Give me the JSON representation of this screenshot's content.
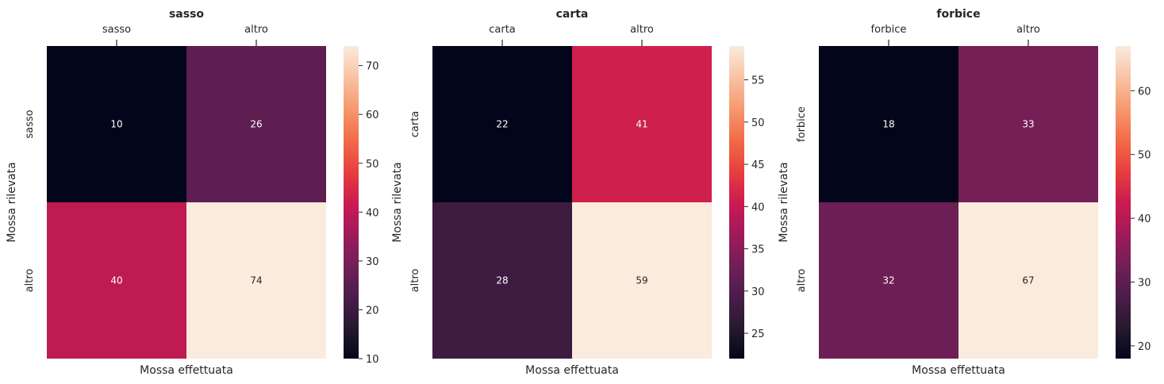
{
  "chart_data": [
    {
      "type": "heatmap",
      "title": "sasso",
      "xlabel": "Mossa effettuata",
      "ylabel": "Mossa rilevata",
      "x_categories": [
        "sasso",
        "altro"
      ],
      "y_categories": [
        "sasso",
        "altro"
      ],
      "values": [
        [
          10,
          26
        ],
        [
          40,
          74
        ]
      ],
      "colorbar": {
        "min": 10,
        "max": 74,
        "ticks": [
          10,
          20,
          30,
          40,
          50,
          60,
          70
        ]
      }
    },
    {
      "type": "heatmap",
      "title": "carta",
      "xlabel": "Mossa effettuata",
      "ylabel": "Mossa rilevata",
      "x_categories": [
        "carta",
        "altro"
      ],
      "y_categories": [
        "carta",
        "altro"
      ],
      "values": [
        [
          22,
          41
        ],
        [
          28,
          59
        ]
      ],
      "colorbar": {
        "min": 22,
        "max": 59,
        "ticks": [
          25,
          30,
          35,
          40,
          45,
          50,
          55
        ]
      }
    },
    {
      "type": "heatmap",
      "title": "forbice",
      "xlabel": "Mossa effettuata",
      "ylabel": "Mossa rilevata",
      "x_categories": [
        "forbice",
        "altro"
      ],
      "y_categories": [
        "forbice",
        "altro"
      ],
      "values": [
        [
          18,
          33
        ],
        [
          32,
          67
        ]
      ],
      "colorbar": {
        "min": 18,
        "max": 67,
        "ticks": [
          20,
          30,
          40,
          50,
          60
        ]
      }
    }
  ],
  "style": {
    "colormap": "rocket",
    "text_color_dark": "#262626",
    "annotation_color": "#ffffff",
    "tick_color": "#262626",
    "grid": false,
    "x_tick_position": "top"
  }
}
